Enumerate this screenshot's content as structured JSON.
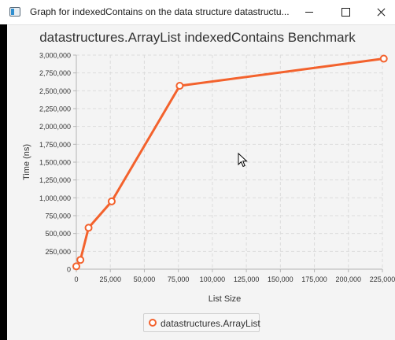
{
  "window": {
    "title": "Graph for indexedContains on the data structure datastructu...",
    "icon": "java-app-icon"
  },
  "chart_data": {
    "type": "line",
    "title": "datastructures.ArrayList indexedContains Benchmark",
    "xlabel": "List Size",
    "ylabel": "Time (ns)",
    "xlim": [
      0,
      225000
    ],
    "ylim": [
      0,
      3000000
    ],
    "x_ticks": [
      0,
      25000,
      50000,
      75000,
      100000,
      125000,
      150000,
      175000,
      200000,
      225000
    ],
    "x_tick_labels": [
      "0",
      "25,000",
      "50,000",
      "75,000",
      "100,000",
      "125,000",
      "150,000",
      "175,000",
      "200,000",
      "225,000"
    ],
    "y_ticks": [
      0,
      250000,
      500000,
      750000,
      1000000,
      1250000,
      1500000,
      1750000,
      2000000,
      2250000,
      2500000,
      2750000,
      3000000
    ],
    "y_tick_labels": [
      "0",
      "250,000",
      "500,000",
      "750,000",
      "1,000,000",
      "1,250,000",
      "1,500,000",
      "1,750,000",
      "2,000,000",
      "2,250,000",
      "2,500,000",
      "2,750,000",
      "3,000,000"
    ],
    "grid": true,
    "legend_position": "bottom",
    "series": [
      {
        "name": "datastructures.ArrayList",
        "color": "#f3622d",
        "x": [
          0,
          3000,
          9000,
          26000,
          76000,
          226000
        ],
        "y": [
          40000,
          130000,
          580000,
          950000,
          2570000,
          2950000
        ]
      }
    ]
  }
}
